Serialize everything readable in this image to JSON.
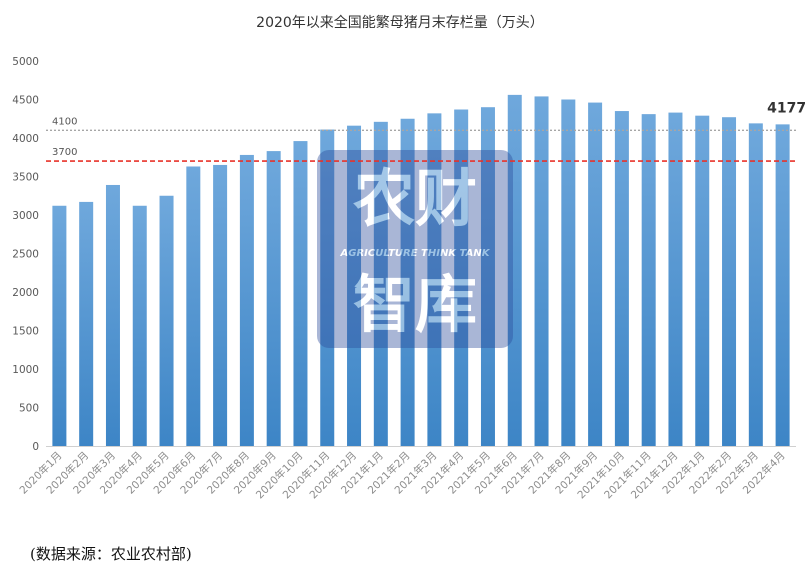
{
  "chart_data": {
    "type": "bar",
    "title": "2020年以来全国能繁母猪月末存栏量（万头）",
    "categories": [
      "2020年1月",
      "2020年2月",
      "2020年3月",
      "2020年4月",
      "2020年5月",
      "2020年6月",
      "2020年7月",
      "2020年8月",
      "2020年9月",
      "2020年10月",
      "2020年11月",
      "2020年12月",
      "2021年1月",
      "2021年2月",
      "2021年3月",
      "2021年4月",
      "2021年5月",
      "2021年6月",
      "2021年7月",
      "2021年8月",
      "2021年9月",
      "2021年10月",
      "2021年11月",
      "2021年12月",
      "2022年1月",
      "2022年2月",
      "2022年3月",
      "2022年4月"
    ],
    "values": [
      3120,
      3170,
      3390,
      3120,
      3250,
      3630,
      3650,
      3780,
      3830,
      3960,
      4110,
      4160,
      4210,
      4250,
      4320,
      4370,
      4400,
      4560,
      4540,
      4500,
      4460,
      4350,
      4310,
      4330,
      4290,
      4270,
      4190,
      4177
    ],
    "ylim": [
      0,
      5000
    ],
    "yticks": [
      0,
      500,
      1000,
      1500,
      2000,
      2500,
      3000,
      3500,
      4000,
      4500,
      5000
    ],
    "reference_lines": [
      {
        "value": 4100,
        "label": "4100",
        "color": "#a6a6a6",
        "style": "dotted"
      },
      {
        "value": 3700,
        "label": "3700",
        "color": "#e8332a",
        "style": "dashed"
      }
    ],
    "highlight_label": {
      "index": 27,
      "text": "4177"
    },
    "bar_color_top": "#6fa8dc",
    "bar_color_bottom": "#3d85c6",
    "grid": false,
    "legend": "none"
  },
  "watermark": {
    "line1": "农财",
    "tagline": "AGRICULTURE THINK TANK",
    "line2": "智库"
  },
  "source_note": "(数据来源：农业农村部)"
}
